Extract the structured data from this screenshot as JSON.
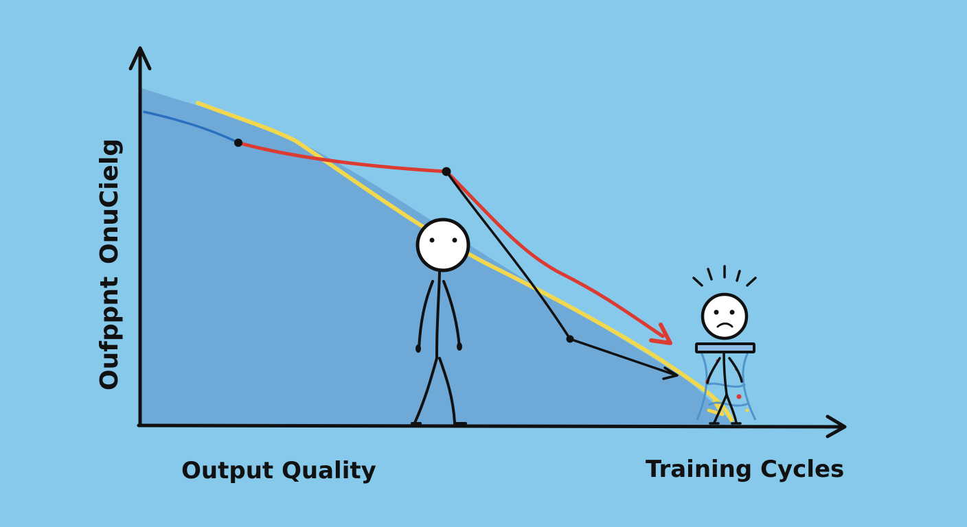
{
  "labels": {
    "x_left": "Output Quality",
    "x_right": "Training Cycles",
    "y_lower": "Oufppnt",
    "y_upper": "OnuCielg"
  },
  "colors": {
    "background": "#86c9ea",
    "area_fill": "#6ea8d6",
    "yellow_line": "#f2d84e",
    "red_line": "#dc3b32",
    "blue_line": "#2a6fc0",
    "ink": "#111111"
  },
  "figures": {
    "standing_person": "neutral-stick-figure",
    "collapsing_person": "worried-stick-figure"
  }
}
